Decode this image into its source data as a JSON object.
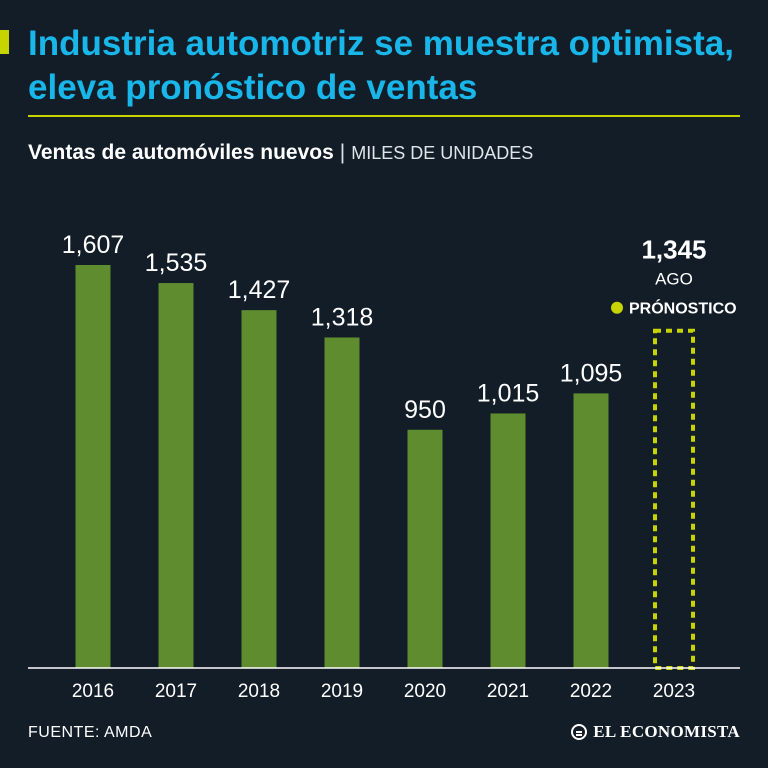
{
  "header": {
    "title": "Industria automotriz se muestra optimista, eleva pronóstico de ventas"
  },
  "subtitle": {
    "main": "Ventas de automóviles nuevos",
    "separator": "|",
    "units": "MILES DE UNIDADES"
  },
  "chart_data": {
    "type": "bar",
    "title": "Ventas de automóviles nuevos",
    "ylabel": "MILES DE UNIDADES",
    "xlabel": "",
    "categories": [
      "2016",
      "2017",
      "2018",
      "2019",
      "2020",
      "2021",
      "2022",
      "2023"
    ],
    "values": [
      1607,
      1535,
      1427,
      1318,
      950,
      1015,
      1095,
      null
    ],
    "value_labels": [
      "1,607",
      "1,535",
      "1,427",
      "1,318",
      "950",
      "1,015",
      "1,095",
      ""
    ],
    "ylim": [
      0,
      1607
    ],
    "forecast": {
      "category": "2023",
      "value": 1345,
      "value_label": "1,345",
      "period": "AGO",
      "label": "PRÓNOSTICO"
    },
    "colors": {
      "bar": "#5f8c2e",
      "forecast": "#c8d400",
      "axis": "#ffffff"
    }
  },
  "footer": {
    "source": "FUENTE: AMDA",
    "brand": "EL ECONOMISTA",
    "brand_icon": "el-economista-logo-icon"
  }
}
